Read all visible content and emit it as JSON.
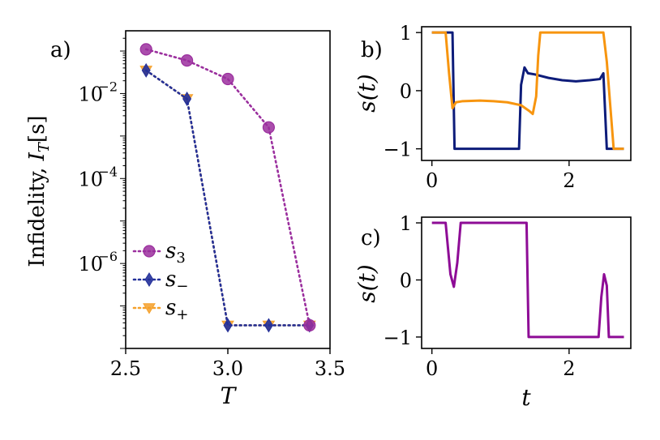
{
  "chart_data": [
    {
      "panel": "a)",
      "type": "line",
      "scale_y": "log",
      "xlabel": "T",
      "ylabel": "Infidelity, I_T[s]",
      "ylabel_parts": {
        "prefix": "Infidelity, ",
        "var": "I",
        "sub": "T",
        "arg": "[s]"
      },
      "xlim": [
        2.5,
        3.5
      ],
      "ylim": [
        1e-08,
        0.3
      ],
      "x_ticks": [
        2.5,
        3.0,
        3.5
      ],
      "x_tick_labels": [
        "2.5",
        "3.0",
        "3.5"
      ],
      "y_ticks": [
        0.01,
        0.0001,
        1e-06
      ],
      "y_tick_labels": [
        {
          "base": "10",
          "exp": "−2"
        },
        {
          "base": "10",
          "exp": "−4"
        },
        {
          "base": "10",
          "exp": "−6"
        }
      ],
      "legend_position": "bottom-left",
      "series": [
        {
          "name": "s3",
          "label": {
            "var": "s",
            "sub": "3"
          },
          "color": "#9b2f9e",
          "marker": "circle",
          "x": [
            2.6,
            2.8,
            3.0,
            3.2,
            3.4
          ],
          "y": [
            0.11,
            0.06,
            0.022,
            0.0016,
            3.5e-08
          ]
        },
        {
          "name": "s-",
          "label": {
            "var": "s",
            "sub": "−"
          },
          "color": "#23309a",
          "marker": "diamond",
          "x": [
            2.6,
            2.8,
            3.0,
            3.2,
            3.4
          ],
          "y": [
            0.035,
            0.0075,
            3.5e-08,
            3.5e-08,
            3.5e-08
          ]
        },
        {
          "name": "s+",
          "label": {
            "var": "s",
            "sub": "+"
          },
          "color": "#f5a02a",
          "marker": "triangle-down",
          "x": [
            2.6,
            2.8,
            3.0,
            3.2,
            3.4
          ],
          "y": [
            0.035,
            0.0075,
            3.5e-08,
            3.5e-08,
            3.5e-08
          ]
        }
      ]
    },
    {
      "panel": "b)",
      "type": "line",
      "xlabel": "",
      "ylabel": "s(t)",
      "xlim": [
        -0.15,
        2.9
      ],
      "ylim": [
        -1.2,
        1.1
      ],
      "x_ticks": [
        0,
        2
      ],
      "x_tick_labels": [
        "0",
        "2"
      ],
      "y_ticks": [
        1,
        0,
        -1
      ],
      "y_tick_labels": [
        "1",
        "0",
        "−1"
      ],
      "series": [
        {
          "name": "s_minus",
          "color": "#0d1c7a",
          "x": [
            0,
            0.2,
            0.3,
            0.33,
            1.27,
            1.3,
            1.35,
            1.4,
            1.5,
            1.7,
            1.9,
            2.1,
            2.3,
            2.45,
            2.5,
            2.55,
            2.65,
            2.8
          ],
          "y": [
            1,
            1,
            1,
            -1,
            -1,
            0.1,
            0.4,
            0.3,
            0.28,
            0.22,
            0.18,
            0.16,
            0.18,
            0.2,
            0.3,
            -1,
            -1,
            -1
          ]
        },
        {
          "name": "s_plus",
          "color": "#f7950f",
          "x": [
            0,
            0.2,
            0.25,
            0.3,
            0.35,
            0.45,
            0.7,
            0.9,
            1.1,
            1.3,
            1.42,
            1.47,
            1.52,
            1.55,
            1.58,
            2.5,
            2.55,
            2.65,
            2.8
          ],
          "y": [
            1,
            1,
            0.3,
            -0.3,
            -0.2,
            -0.18,
            -0.17,
            -0.18,
            -0.2,
            -0.25,
            -0.35,
            -0.4,
            -0.1,
            0.6,
            1,
            1,
            0.5,
            -1,
            -1
          ]
        }
      ]
    },
    {
      "panel": "c)",
      "type": "line",
      "xlabel": "t",
      "ylabel": "s(t)",
      "xlim": [
        -0.15,
        2.9
      ],
      "ylim": [
        -1.2,
        1.1
      ],
      "x_ticks": [
        0,
        2
      ],
      "x_tick_labels": [
        "0",
        "2"
      ],
      "y_ticks": [
        1,
        0,
        -1
      ],
      "y_tick_labels": [
        "1",
        "0",
        "−1"
      ],
      "series": [
        {
          "name": "s3",
          "color": "#8e0c96",
          "x": [
            0,
            0.2,
            0.27,
            0.32,
            0.37,
            0.42,
            1.38,
            1.41,
            2.43,
            2.47,
            2.51,
            2.55,
            2.58,
            2.62,
            2.8
          ],
          "y": [
            1,
            1,
            0.1,
            -0.12,
            0.3,
            1,
            1,
            -1,
            -1,
            -0.3,
            0.1,
            -0.1,
            -1,
            -1,
            -1
          ]
        }
      ]
    }
  ]
}
